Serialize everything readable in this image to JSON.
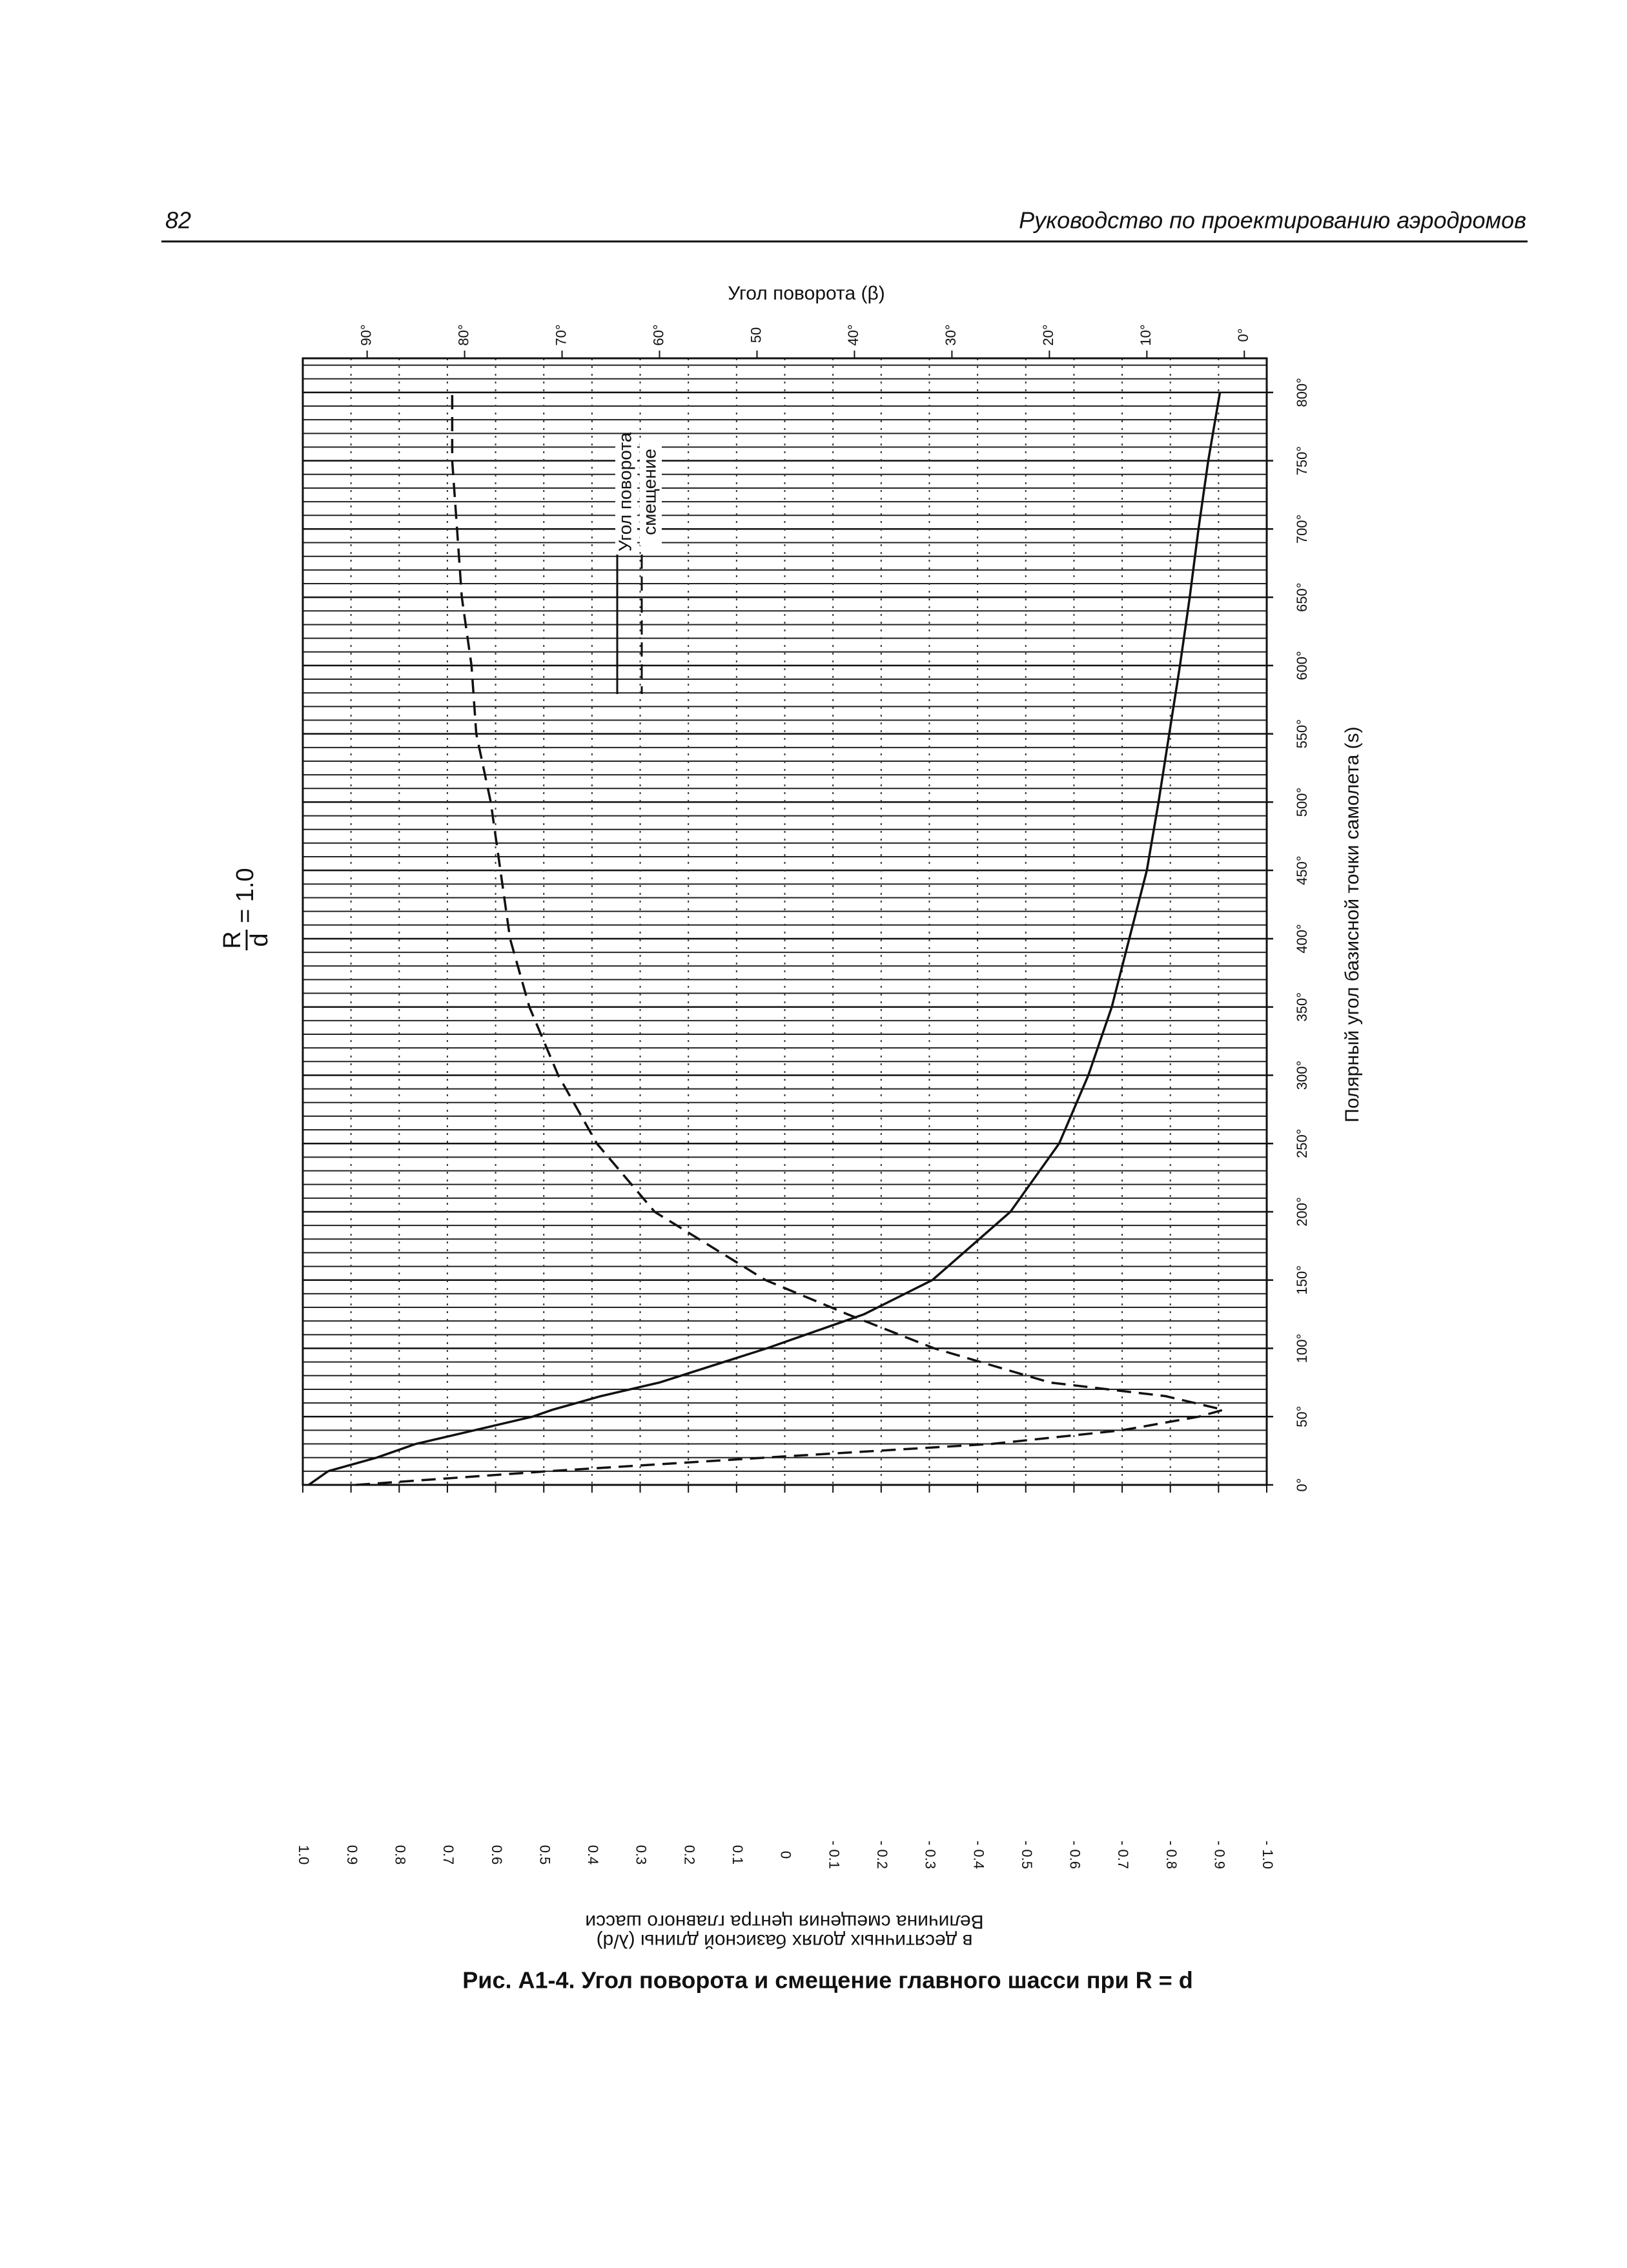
{
  "page_number": "82",
  "running_title": "Руководство по проектированию аэродромов",
  "caption": "Рис. А1-4.  Угол поворота и смещение главного шасси при R = d",
  "chart_data": {
    "type": "line",
    "annotation": {
      "numerator": "R",
      "denominator": "d",
      "text": "= 1.0"
    },
    "y2label": "Угол поворота (β)",
    "xlabel": "Полярный угол базисной точки самолета (s)",
    "ylabel": [
      "Величина смещения центра главного шасси",
      "в десятичных долях базисной длины (λ/d)"
    ],
    "x": [
      0,
      10,
      20,
      30,
      40,
      50,
      55,
      65,
      75,
      100,
      125,
      150,
      200,
      250,
      300,
      350,
      400,
      450,
      500,
      550,
      600,
      650,
      700,
      750,
      800
    ],
    "series": [
      {
        "name": "Угол поворота",
        "color": "#111111",
        "line_style": "solid",
        "axis": "y2",
        "values": [
          96,
          94,
          89,
          85,
          79,
          73,
          71,
          66,
          60,
          49,
          39,
          32,
          24,
          19,
          16,
          13.6,
          11.8,
          10,
          8.8,
          7.7,
          6.6,
          5.6,
          4.7,
          3.7,
          2.5
        ]
      },
      {
        "name": "смещение",
        "color": "#111111",
        "line_style": "dashed",
        "axis": "y",
        "values": [
          0.89,
          0.49,
          0.04,
          -0.43,
          -0.7,
          -0.86,
          -0.91,
          -0.79,
          -0.55,
          -0.31,
          -0.13,
          0.04,
          0.27,
          0.39,
          0.47,
          0.53,
          0.57,
          0.59,
          0.61,
          0.64,
          0.65,
          0.67,
          0.68,
          0.69,
          0.69
        ]
      }
    ],
    "xlim": [
      0,
      825
    ],
    "xticks": [
      {
        "value": 0,
        "label": "0°"
      },
      {
        "value": 50,
        "label": "50°"
      },
      {
        "value": 100,
        "label": "100°"
      },
      {
        "value": 150,
        "label": "150°"
      },
      {
        "value": 200,
        "label": "200°"
      },
      {
        "value": 250,
        "label": "250°"
      },
      {
        "value": 300,
        "label": "300°"
      },
      {
        "value": 350,
        "label": "350°"
      },
      {
        "value": 400,
        "label": "400°"
      },
      {
        "value": 450,
        "label": "450°"
      },
      {
        "value": 500,
        "label": "500°"
      },
      {
        "value": 550,
        "label": "550°"
      },
      {
        "value": 600,
        "label": "600°"
      },
      {
        "value": 650,
        "label": "650°"
      },
      {
        "value": 700,
        "label": "700°"
      },
      {
        "value": 750,
        "label": "750°"
      },
      {
        "value": 800,
        "label": "800°"
      }
    ],
    "x_grid_step": 10,
    "ylim": [
      1.0,
      -1.0
    ],
    "yticks": [
      {
        "value": 1.0,
        "label": "1.0"
      },
      0.9,
      0.8,
      0.7,
      0.6,
      0.5,
      0.4,
      0.3,
      0.2,
      0.1,
      0,
      {
        "value": -0.1,
        "label": "- 0.1"
      },
      {
        "value": -0.2,
        "label": "- 0.2"
      },
      {
        "value": -0.3,
        "label": "- 0.3"
      },
      {
        "value": -0.4,
        "label": "- 0.4"
      },
      {
        "value": -0.5,
        "label": "- 0.5"
      },
      {
        "value": -0.6,
        "label": "- 0.6"
      },
      {
        "value": -0.7,
        "label": "- 0.7"
      },
      {
        "value": -0.8,
        "label": "- 0.8"
      },
      {
        "value": -0.9,
        "label": "- 0.9"
      },
      {
        "value": -1.0,
        "label": "- 1.0"
      }
    ],
    "y2lim": [
      96.6,
      -2.3
    ],
    "y2ticks": [
      {
        "value": 90,
        "label": "90°"
      },
      {
        "value": 80,
        "label": "80°"
      },
      {
        "value": 70,
        "label": "70°"
      },
      {
        "value": 60,
        "label": "60°"
      },
      50,
      {
        "value": 40,
        "label": "40°"
      },
      {
        "value": 30,
        "label": "30°"
      },
      {
        "value": 20,
        "label": "20°"
      },
      {
        "value": 10,
        "label": "10°"
      },
      {
        "value": 0,
        "label": "0°"
      }
    ],
    "grid": true
  }
}
